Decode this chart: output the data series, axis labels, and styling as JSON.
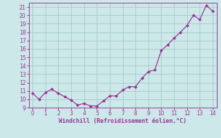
{
  "x": [
    0,
    0.5,
    1,
    1.5,
    2,
    2.5,
    3,
    3.5,
    4,
    4.5,
    5,
    5.5,
    6,
    6.5,
    7,
    7.5,
    8,
    8.5,
    9,
    9.5,
    10,
    10.5,
    11,
    11.5,
    12,
    12.5,
    13,
    13.5,
    14
  ],
  "y": [
    10.7,
    10.0,
    10.8,
    11.2,
    10.7,
    10.3,
    9.9,
    9.3,
    9.5,
    9.2,
    9.2,
    9.8,
    10.4,
    10.4,
    11.1,
    11.5,
    11.5,
    12.5,
    13.3,
    13.5,
    15.8,
    16.5,
    17.3,
    18.0,
    18.8,
    20.0,
    19.5,
    21.2,
    20.5
  ],
  "line_color": "#993399",
  "marker_color": "#993399",
  "bg_color": "#cce8e8",
  "grid_color": "#aacccc",
  "xlabel": "Windchill (Refroidissement éolien,°C)",
  "xlabel_color": "#993399",
  "tick_color": "#993399",
  "ylim": [
    9,
    21.5
  ],
  "xlim": [
    -0.3,
    14.3
  ],
  "yticks": [
    9,
    10,
    11,
    12,
    13,
    14,
    15,
    16,
    17,
    18,
    19,
    20,
    21
  ],
  "xticks": [
    0,
    1,
    2,
    3,
    4,
    5,
    6,
    7,
    8,
    9,
    10,
    11,
    12,
    13,
    14
  ]
}
